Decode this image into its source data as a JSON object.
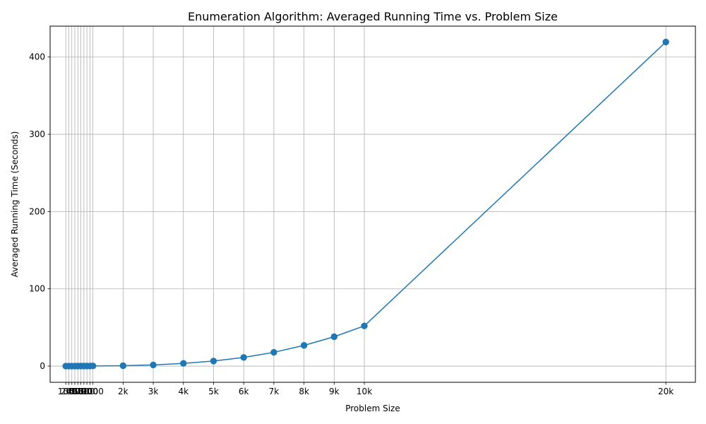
{
  "chart_data": {
    "type": "line",
    "title": "Enumeration Algorithm: Averaged Running Time vs. Problem Size",
    "xlabel": "Problem Size",
    "ylabel": "Averaged Running Time (Seconds)",
    "xlim": [
      -420,
      20980
    ],
    "ylim": [
      -21,
      440
    ],
    "grid": true,
    "color": "#1f77b4",
    "x": [
      100,
      200,
      300,
      400,
      500,
      600,
      700,
      800,
      900,
      1000,
      2000,
      3000,
      4000,
      5000,
      6000,
      7000,
      8000,
      9000,
      10000,
      20000
    ],
    "x_tick_labels": [
      "100",
      "200",
      "300",
      "400",
      "500",
      "600",
      "700",
      "800",
      "900",
      "1000",
      "2k",
      "3k",
      "4k",
      "5k",
      "6k",
      "7k",
      "8k",
      "9k",
      "10k",
      "20k"
    ],
    "series": [
      {
        "values": [
          0.0,
          0.0,
          0.01,
          0.02,
          0.03,
          0.05,
          0.07,
          0.1,
          0.14,
          0.2,
          0.5,
          1.5,
          3.5,
          6.5,
          11.2,
          17.8,
          26.8,
          38.0,
          52.0,
          419.5
        ]
      }
    ],
    "y_ticks": [
      0,
      100,
      200,
      300,
      400
    ]
  }
}
